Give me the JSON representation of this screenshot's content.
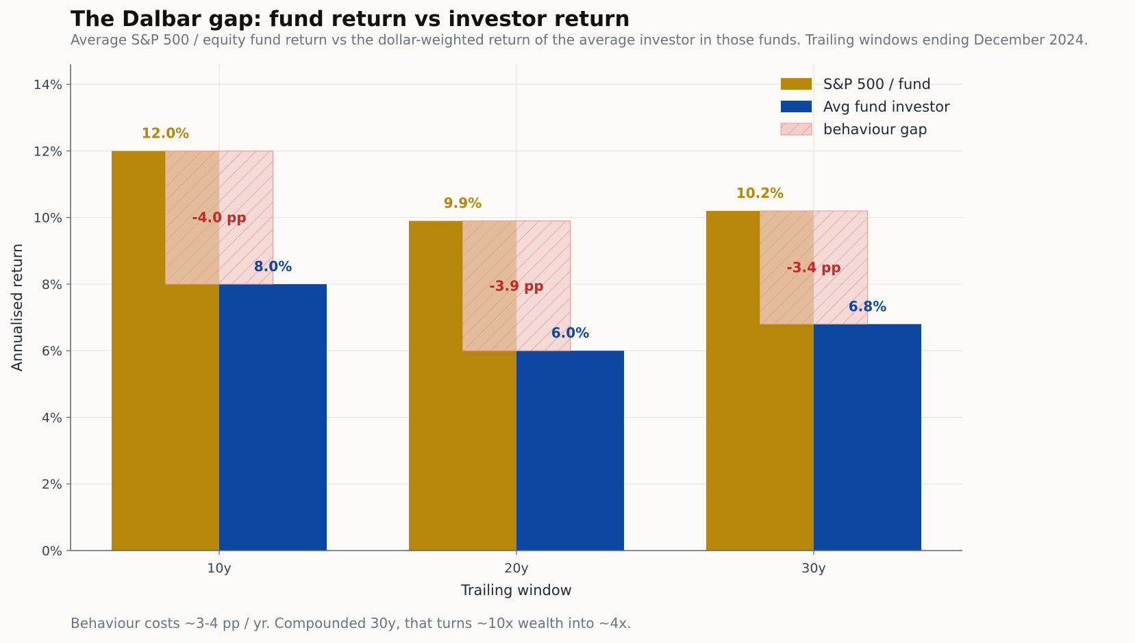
{
  "title": "The Dalbar gap: fund return vs investor return",
  "subtitle": "Average S&P 500 / equity fund return vs the dollar-weighted return of the average investor in those funds. Trailing windows ending December 2024.",
  "footnote": "Behaviour costs ~3-4 pp / yr. Compounded 30y, that turns ~10x wealth into ~4x.",
  "colors": {
    "fund": "#b8860b",
    "investor": "#0d47a1",
    "gap_fill": "#f1cfcb",
    "gap_hatch": "#e29a94",
    "gap_label": "#c62828",
    "axis": "#5b6475",
    "grid": "#e3e1dc"
  },
  "chart_data": {
    "type": "bar",
    "categories": [
      "10y",
      "20y",
      "30y"
    ],
    "series": [
      {
        "name": "S&P 500 / fund",
        "values": [
          12.0,
          9.9,
          10.2
        ]
      },
      {
        "name": "Avg fund investor",
        "values": [
          8.0,
          6.0,
          6.8
        ]
      }
    ],
    "gap": {
      "name": "behaviour gap",
      "values": [
        -4.0,
        -3.9,
        -3.4
      ],
      "labels": [
        "-4.0 pp",
        "-3.9 pp",
        "-3.4 pp"
      ]
    },
    "value_labels": {
      "fund": [
        "12.0%",
        "9.9%",
        "10.2%"
      ],
      "investor": [
        "8.0%",
        "6.0%",
        "6.8%"
      ]
    },
    "xlabel": "Trailing window",
    "ylabel": "Annualised return",
    "ylim": [
      0,
      14.6
    ],
    "yticks": [
      0,
      2,
      4,
      6,
      8,
      10,
      12,
      14
    ],
    "ytick_labels": [
      "0%",
      "2%",
      "4%",
      "6%",
      "8%",
      "10%",
      "12%",
      "14%"
    ],
    "grid": true,
    "legend_position": "top-right"
  }
}
